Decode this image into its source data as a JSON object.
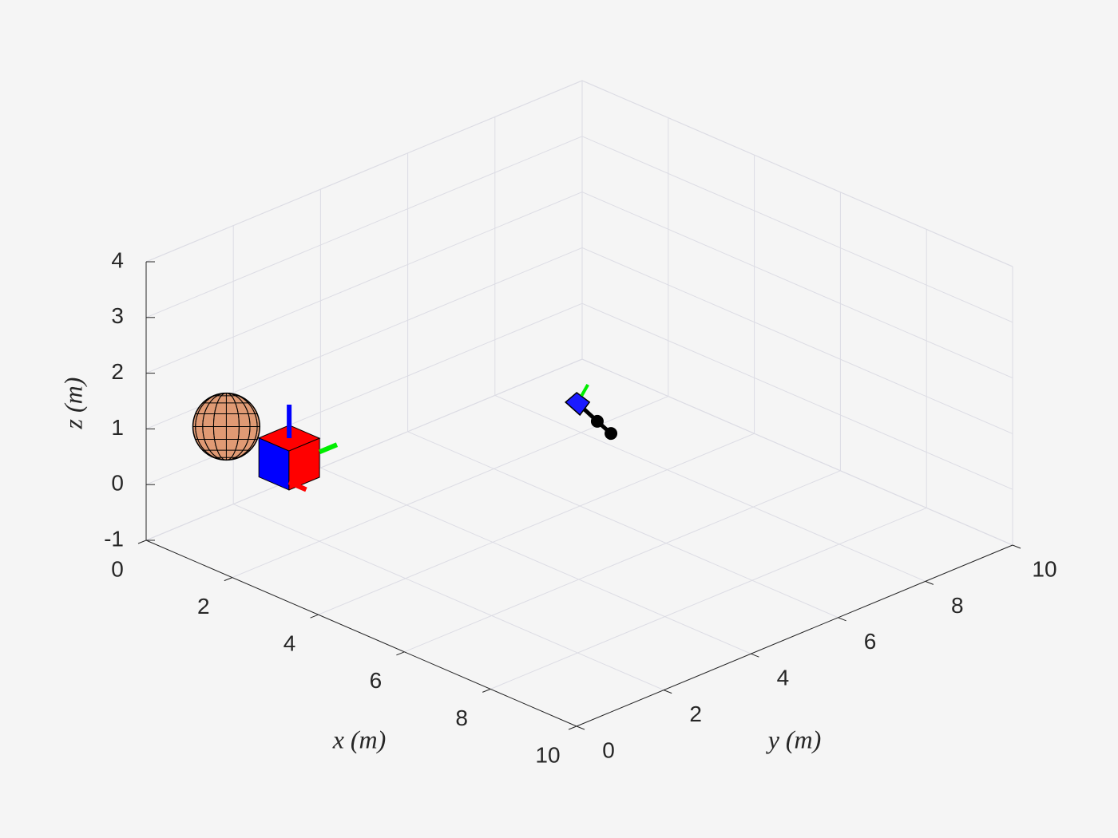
{
  "chart_data": {
    "type": "scene3d",
    "xlabel": "x (m)",
    "ylabel": "y (m)",
    "zlabel": "z (m)",
    "xlim": [
      0,
      10
    ],
    "ylim": [
      0,
      10
    ],
    "zlim": [
      -1,
      4
    ],
    "xticks": [
      0,
      2,
      4,
      6,
      8,
      10
    ],
    "yticks": [
      0,
      2,
      4,
      6,
      8,
      10
    ],
    "zticks": [
      -1,
      0,
      1,
      2,
      3,
      4
    ],
    "grid": true,
    "objects": [
      {
        "type": "sphere",
        "center": [
          0.85,
          1,
          1
        ],
        "radius": 0.6,
        "color": "#e09a74"
      },
      {
        "type": "cube",
        "center": [
          1.5,
          1.8,
          0.4
        ],
        "size": 0.7,
        "color": "#ff0000",
        "side_color": "#0000ff"
      },
      {
        "type": "robot",
        "points": [
          [
            4.54,
            5.43,
            1.2
          ],
          [
            4.93,
            5.48,
            1
          ],
          [
            5.42,
            5.31,
            1
          ]
        ],
        "color": "#000000"
      }
    ]
  }
}
